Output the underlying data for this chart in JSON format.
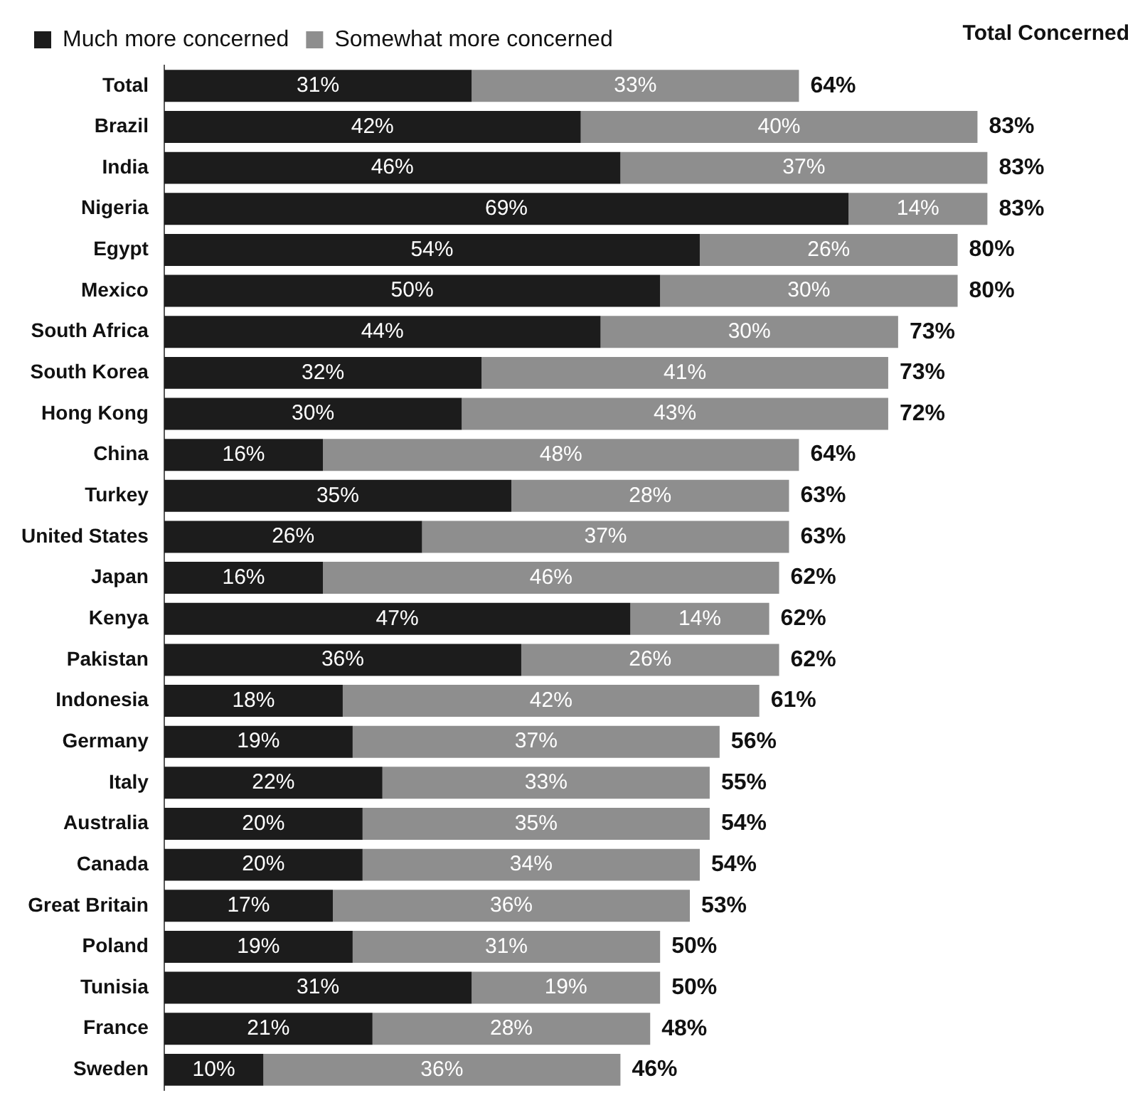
{
  "chart_data": {
    "type": "bar",
    "orientation": "horizontal",
    "stacked": true,
    "legend": "top",
    "annotations": [
      "Total Concerned"
    ],
    "categories": [
      "Total",
      "Brazil",
      "India",
      "Nigeria",
      "Egypt",
      "Mexico",
      "South Africa",
      "South Korea",
      "Hong Kong",
      "China",
      "Turkey",
      "United States",
      "Japan",
      "Kenya",
      "Pakistan",
      "Indonesia",
      "Germany",
      "Italy",
      "Australia",
      "Canada",
      "Great Britain",
      "Poland",
      "Tunisia",
      "France",
      "Sweden"
    ],
    "series": [
      {
        "name": "Much more concerned",
        "color": "#1c1c1c",
        "values": [
          31,
          42,
          46,
          69,
          54,
          50,
          44,
          32,
          30,
          16,
          35,
          26,
          16,
          47,
          36,
          18,
          19,
          22,
          20,
          20,
          17,
          19,
          31,
          21,
          10
        ],
        "value_labels": [
          "31%",
          "42%",
          "46%",
          "69%",
          "54%",
          "50%",
          "44%",
          "32%",
          "30%",
          "16%",
          "35%",
          "26%",
          "16%",
          "47%",
          "36%",
          "18%",
          "19%",
          "22%",
          "20%",
          "20%",
          "17%",
          "19%",
          "31%",
          "21%",
          "10%"
        ]
      },
      {
        "name": "Somewhat more concerned",
        "color": "#8e8e8e",
        "values": [
          33,
          40,
          37,
          14,
          26,
          30,
          30,
          41,
          43,
          48,
          28,
          37,
          46,
          14,
          26,
          42,
          37,
          33,
          35,
          34,
          36,
          31,
          19,
          28,
          36
        ],
        "value_labels": [
          "33%",
          "40%",
          "37%",
          "14%",
          "26%",
          "30%",
          "30%",
          "41%",
          "43%",
          "48%",
          "28%",
          "37%",
          "46%",
          "14%",
          "26%",
          "42%",
          "37%",
          "33%",
          "35%",
          "34%",
          "36%",
          "31%",
          "19%",
          "28%",
          "36%"
        ]
      }
    ],
    "totals": [
      "64%",
      "83%",
      "83%",
      "83%",
      "80%",
      "80%",
      "73%",
      "73%",
      "72%",
      "64%",
      "63%",
      "63%",
      "62%",
      "62%",
      "62%",
      "61%",
      "56%",
      "55%",
      "54%",
      "54%",
      "53%",
      "50%",
      "50%",
      "48%",
      "46%"
    ]
  }
}
